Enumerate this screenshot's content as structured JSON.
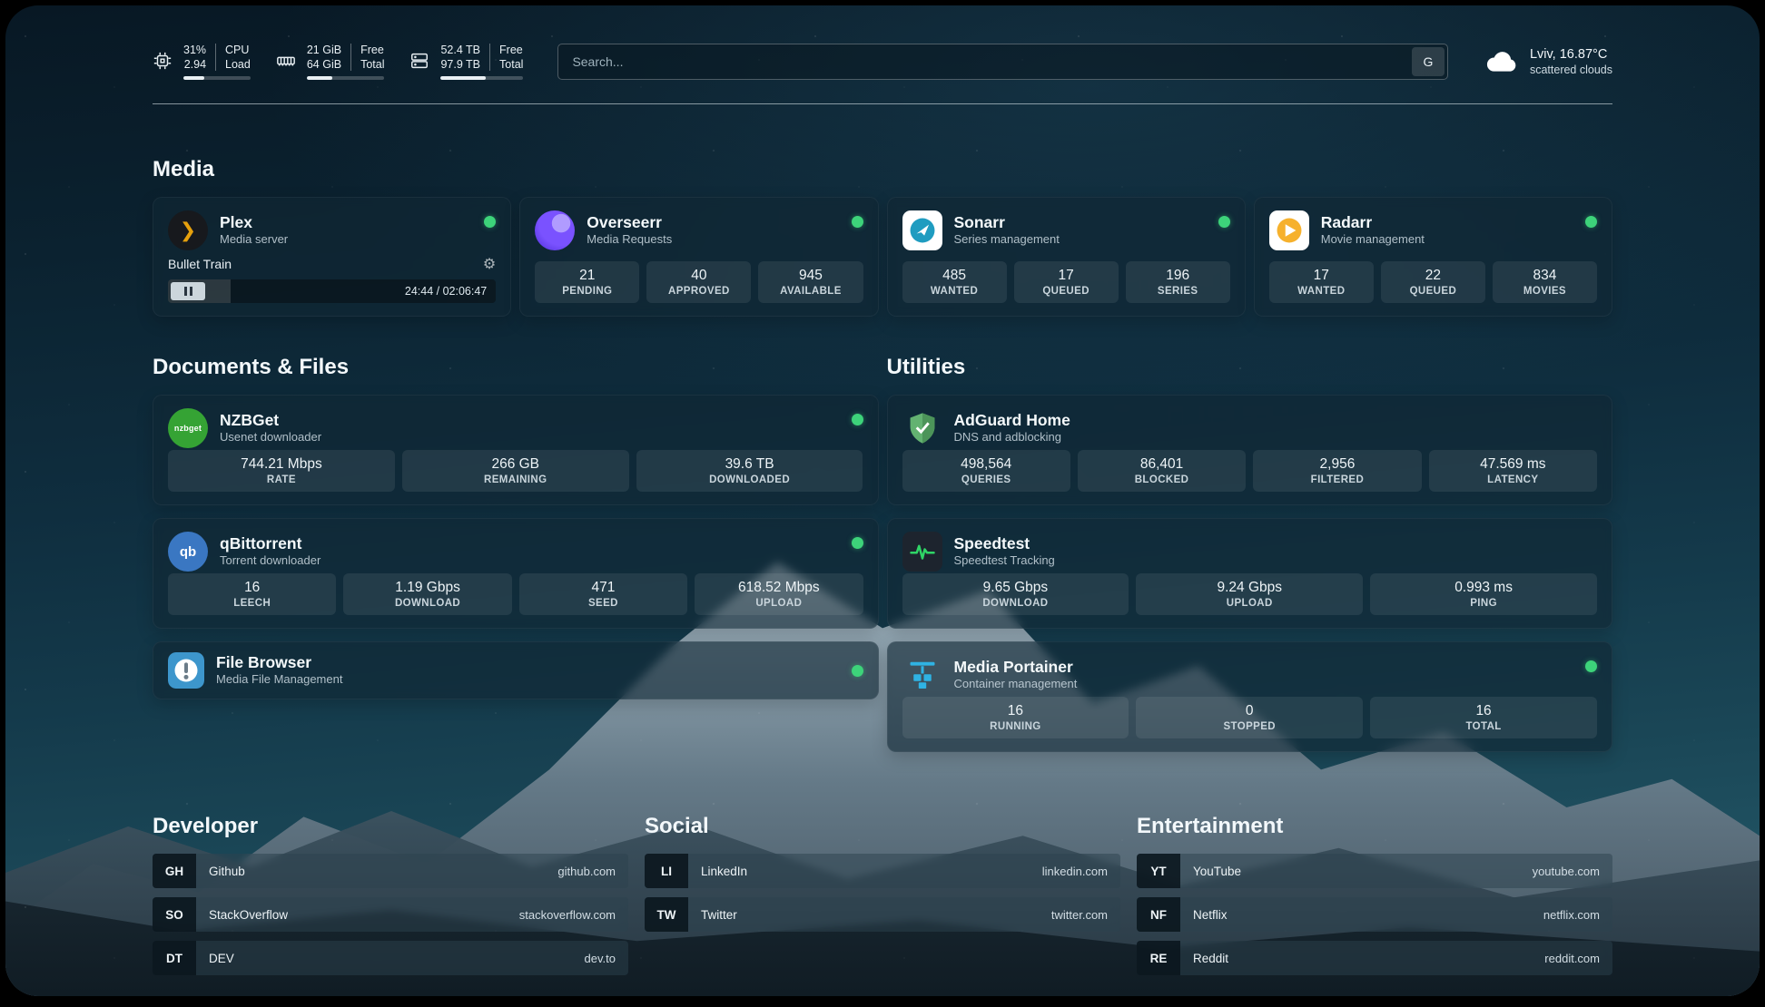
{
  "header": {
    "cpu": {
      "percent": "31%",
      "load": "2.94",
      "label_top": "CPU",
      "label_bottom": "Load",
      "bar_percent": 31
    },
    "ram": {
      "value_top": "21 GiB",
      "value_bottom": "64 GiB",
      "label_top": "Free",
      "label_bottom": "Total",
      "bar_percent": 33
    },
    "disk": {
      "value_top": "52.4 TB",
      "value_bottom": "97.9 TB",
      "label_top": "Free",
      "label_bottom": "Total",
      "bar_percent": 54
    },
    "search": {
      "placeholder": "Search...",
      "engine_button": "G"
    },
    "weather": {
      "location": "Lviv, 16.87°C",
      "condition": "scattered clouds"
    }
  },
  "media": {
    "title": "Media",
    "plex": {
      "title": "Plex",
      "subtitle": "Media server",
      "now_playing": "Bullet Train",
      "time": "24:44 / 02:06:47",
      "progress_percent": 19
    },
    "overseerr": {
      "title": "Overseerr",
      "subtitle": "Media Requests",
      "stats": [
        {
          "v": "21",
          "l": "PENDING"
        },
        {
          "v": "40",
          "l": "APPROVED"
        },
        {
          "v": "945",
          "l": "AVAILABLE"
        }
      ]
    },
    "sonarr": {
      "title": "Sonarr",
      "subtitle": "Series management",
      "stats": [
        {
          "v": "485",
          "l": "WANTED"
        },
        {
          "v": "17",
          "l": "QUEUED"
        },
        {
          "v": "196",
          "l": "SERIES"
        }
      ]
    },
    "radarr": {
      "title": "Radarr",
      "subtitle": "Movie management",
      "stats": [
        {
          "v": "17",
          "l": "WANTED"
        },
        {
          "v": "22",
          "l": "QUEUED"
        },
        {
          "v": "834",
          "l": "MOVIES"
        }
      ]
    }
  },
  "documents": {
    "title": "Documents & Files",
    "nzbget": {
      "title": "NZBGet",
      "subtitle": "Usenet downloader",
      "stats": [
        {
          "v": "744.21 Mbps",
          "l": "RATE"
        },
        {
          "v": "266 GB",
          "l": "REMAINING"
        },
        {
          "v": "39.6 TB",
          "l": "DOWNLOADED"
        }
      ]
    },
    "qbittorrent": {
      "title": "qBittorrent",
      "subtitle": "Torrent downloader",
      "stats": [
        {
          "v": "16",
          "l": "LEECH"
        },
        {
          "v": "1.19 Gbps",
          "l": "DOWNLOAD"
        },
        {
          "v": "471",
          "l": "SEED"
        },
        {
          "v": "618.52 Mbps",
          "l": "UPLOAD"
        }
      ]
    },
    "filebrowser": {
      "title": "File Browser",
      "subtitle": "Media File Management"
    }
  },
  "utilities": {
    "title": "Utilities",
    "adguard": {
      "title": "AdGuard Home",
      "subtitle": "DNS and adblocking",
      "stats": [
        {
          "v": "498,564",
          "l": "QUERIES"
        },
        {
          "v": "86,401",
          "l": "BLOCKED"
        },
        {
          "v": "2,956",
          "l": "FILTERED"
        },
        {
          "v": "47.569 ms",
          "l": "LATENCY"
        }
      ]
    },
    "speedtest": {
      "title": "Speedtest",
      "subtitle": "Speedtest Tracking",
      "stats": [
        {
          "v": "9.65 Gbps",
          "l": "DOWNLOAD"
        },
        {
          "v": "9.24 Gbps",
          "l": "UPLOAD"
        },
        {
          "v": "0.993 ms",
          "l": "PING"
        }
      ]
    },
    "portainer": {
      "title": "Media Portainer",
      "subtitle": "Container management",
      "stats": [
        {
          "v": "16",
          "l": "RUNNING"
        },
        {
          "v": "0",
          "l": "STOPPED"
        },
        {
          "v": "16",
          "l": "TOTAL"
        }
      ]
    }
  },
  "bookmarks": {
    "developer": {
      "title": "Developer",
      "items": [
        {
          "abbr": "GH",
          "name": "Github",
          "url": "github.com"
        },
        {
          "abbr": "SO",
          "name": "StackOverflow",
          "url": "stackoverflow.com"
        },
        {
          "abbr": "DT",
          "name": "DEV",
          "url": "dev.to"
        }
      ]
    },
    "social": {
      "title": "Social",
      "items": [
        {
          "abbr": "LI",
          "name": "LinkedIn",
          "url": "linkedin.com"
        },
        {
          "abbr": "TW",
          "name": "Twitter",
          "url": "twitter.com"
        }
      ]
    },
    "entertainment": {
      "title": "Entertainment",
      "items": [
        {
          "abbr": "YT",
          "name": "YouTube",
          "url": "youtube.com"
        },
        {
          "abbr": "NF",
          "name": "Netflix",
          "url": "netflix.com"
        },
        {
          "abbr": "RE",
          "name": "Reddit",
          "url": "reddit.com"
        }
      ]
    }
  },
  "icons": {
    "plex_glyph": "❯",
    "nzbget_label": "nzbget",
    "qbittorrent_label": "qb",
    "gear_glyph": "⚙"
  }
}
